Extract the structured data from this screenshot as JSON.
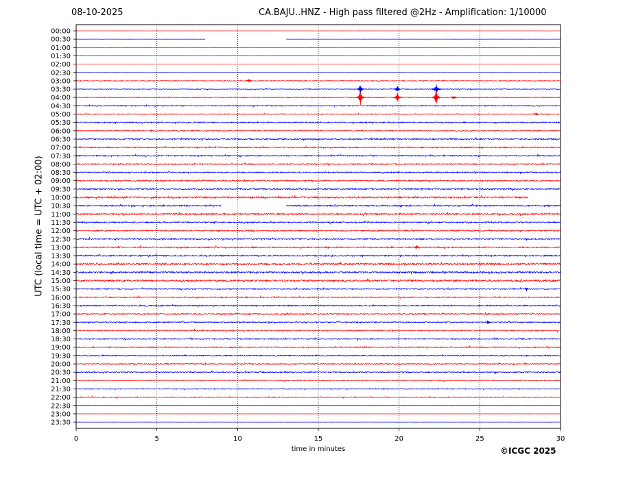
{
  "header": {
    "date": "08-10-2025",
    "title": "CA.BAJU..HNZ - High pass filtered @2Hz - Amplification: 1/10000"
  },
  "footer": {
    "copyright": "©ICGC 2025"
  },
  "chart_data": {
    "type": "line",
    "title": "CA.BAJU..HNZ - High pass filtered @2Hz - Amplification: 1/10000",
    "xlabel": "time in minutes",
    "ylabel": "UTC (local time = UTC + 02:00)",
    "xlim": [
      0,
      30
    ],
    "xticks": [
      "0",
      "5",
      "10",
      "15",
      "20",
      "25",
      "30"
    ],
    "vertical_gridlines_at_minutes": [
      5,
      10,
      15,
      20,
      25
    ],
    "grid": "vertical dotted",
    "trace_colors": [
      "#ff0000",
      "#0000ff"
    ],
    "traces": [
      {
        "label": "00:00",
        "color": "#ff0000",
        "noise": 0.1,
        "events": []
      },
      {
        "label": "00:30",
        "color": "#0000ff",
        "noise": 0.1,
        "gaps": [
          [
            8,
            13
          ]
        ],
        "events": []
      },
      {
        "label": "01:00",
        "color": "#ff0000",
        "noise": 0.1,
        "events": []
      },
      {
        "label": "01:30",
        "color": "#0000ff",
        "noise": 0.1,
        "events": []
      },
      {
        "label": "02:00",
        "color": "#ff0000",
        "noise": 0.1,
        "events": []
      },
      {
        "label": "02:30",
        "color": "#0000ff",
        "noise": 0.1,
        "events": []
      },
      {
        "label": "03:00",
        "color": "#ff0000",
        "noise": 0.5,
        "events": [
          {
            "t": 10.7,
            "amp": 3
          }
        ]
      },
      {
        "label": "03:30",
        "color": "#0000ff",
        "noise": 0.5,
        "events": [
          {
            "t": 17.6,
            "amp": 9
          },
          {
            "t": 19.9,
            "amp": 6
          },
          {
            "t": 22.3,
            "amp": 9
          }
        ]
      },
      {
        "label": "04:00",
        "color": "#ff0000",
        "noise": 0.5,
        "events": [
          {
            "t": 17.6,
            "amp": 14
          },
          {
            "t": 19.9,
            "amp": 9
          },
          {
            "t": 22.3,
            "amp": 14
          },
          {
            "t": 23.4,
            "amp": 3
          }
        ]
      },
      {
        "label": "04:30",
        "color": "#0000ff",
        "noise": 0.7,
        "events": []
      },
      {
        "label": "05:00",
        "color": "#ff0000",
        "noise": 0.6,
        "events": [
          {
            "t": 28.5,
            "amp": 3
          }
        ]
      },
      {
        "label": "05:30",
        "color": "#0000ff",
        "noise": 0.8,
        "events": []
      },
      {
        "label": "06:00",
        "color": "#ff0000",
        "noise": 0.6,
        "events": []
      },
      {
        "label": "06:30",
        "color": "#0000ff",
        "noise": 0.9,
        "events": []
      },
      {
        "label": "07:00",
        "color": "#ff0000",
        "noise": 0.8,
        "events": []
      },
      {
        "label": "07:30",
        "color": "#0000ff",
        "noise": 0.8,
        "events": []
      },
      {
        "label": "08:00",
        "color": "#ff0000",
        "noise": 0.8,
        "events": []
      },
      {
        "label": "08:30",
        "color": "#0000ff",
        "noise": 0.8,
        "events": []
      },
      {
        "label": "09:00",
        "color": "#ff0000",
        "noise": 0.9,
        "events": []
      },
      {
        "label": "09:30",
        "color": "#0000ff",
        "noise": 1.0,
        "events": []
      },
      {
        "label": "10:00",
        "color": "#ff0000",
        "noise": 1.2,
        "gaps": [
          [
            28,
            30
          ]
        ],
        "events": []
      },
      {
        "label": "10:30",
        "color": "#0000ff",
        "noise": 1.0,
        "gaps": [
          [
            9,
            13
          ]
        ],
        "events": []
      },
      {
        "label": "11:00",
        "color": "#ff0000",
        "noise": 1.1,
        "events": []
      },
      {
        "label": "11:30",
        "color": "#0000ff",
        "noise": 0.9,
        "events": []
      },
      {
        "label": "12:00",
        "color": "#ff0000",
        "noise": 0.9,
        "events": []
      },
      {
        "label": "12:30",
        "color": "#0000ff",
        "noise": 0.9,
        "events": []
      },
      {
        "label": "13:00",
        "color": "#ff0000",
        "noise": 0.9,
        "events": [
          {
            "t": 21.1,
            "amp": 4
          }
        ]
      },
      {
        "label": "13:30",
        "color": "#0000ff",
        "noise": 0.9,
        "events": []
      },
      {
        "label": "14:00",
        "color": "#ff0000",
        "noise": 1.3,
        "events": []
      },
      {
        "label": "14:30",
        "color": "#0000ff",
        "noise": 1.1,
        "events": []
      },
      {
        "label": "15:00",
        "color": "#ff0000",
        "noise": 1.3,
        "events": []
      },
      {
        "label": "15:30",
        "color": "#0000ff",
        "noise": 0.8,
        "events": [
          {
            "t": 27.9,
            "amp": 3
          }
        ]
      },
      {
        "label": "16:00",
        "color": "#ff0000",
        "noise": 0.8,
        "events": []
      },
      {
        "label": "16:30",
        "color": "#0000ff",
        "noise": 0.8,
        "events": []
      },
      {
        "label": "17:00",
        "color": "#ff0000",
        "noise": 0.8,
        "events": []
      },
      {
        "label": "17:30",
        "color": "#0000ff",
        "noise": 0.8,
        "events": [
          {
            "t": 25.5,
            "amp": 3
          }
        ]
      },
      {
        "label": "18:00",
        "color": "#ff0000",
        "noise": 0.8,
        "events": []
      },
      {
        "label": "18:30",
        "color": "#0000ff",
        "noise": 0.8,
        "events": []
      },
      {
        "label": "19:00",
        "color": "#ff0000",
        "noise": 0.8,
        "events": []
      },
      {
        "label": "19:30",
        "color": "#0000ff",
        "noise": 0.7,
        "events": []
      },
      {
        "label": "20:00",
        "color": "#ff0000",
        "noise": 0.7,
        "events": []
      },
      {
        "label": "20:30",
        "color": "#0000ff",
        "noise": 0.8,
        "events": []
      },
      {
        "label": "21:00",
        "color": "#ff0000",
        "noise": 0.6,
        "events": []
      },
      {
        "label": "21:30",
        "color": "#0000ff",
        "noise": 0.6,
        "events": []
      },
      {
        "label": "22:00",
        "color": "#ff0000",
        "noise": 0.6,
        "events": []
      },
      {
        "label": "22:30",
        "color": "#0000ff",
        "noise": 0.1,
        "events": []
      },
      {
        "label": "23:00",
        "color": "#ff0000",
        "noise": 0.1,
        "events": []
      },
      {
        "label": "23:30",
        "color": "#0000ff",
        "noise": 0.1,
        "events": []
      }
    ]
  }
}
